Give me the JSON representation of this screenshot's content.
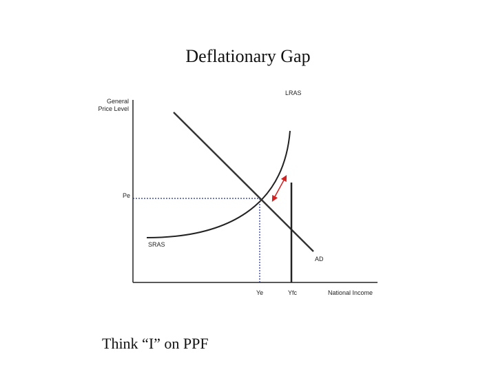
{
  "title": "Deflationary Gap",
  "axes": {
    "y_label": [
      "General",
      "Price Level"
    ],
    "x_label": "National Income"
  },
  "labels": {
    "lras": "LRAS",
    "pe": "Pe",
    "sras": "SRAS",
    "ad": "AD",
    "ye": "Ye",
    "yfc": "Yfc"
  },
  "footer": "Think “I” on PPF"
}
